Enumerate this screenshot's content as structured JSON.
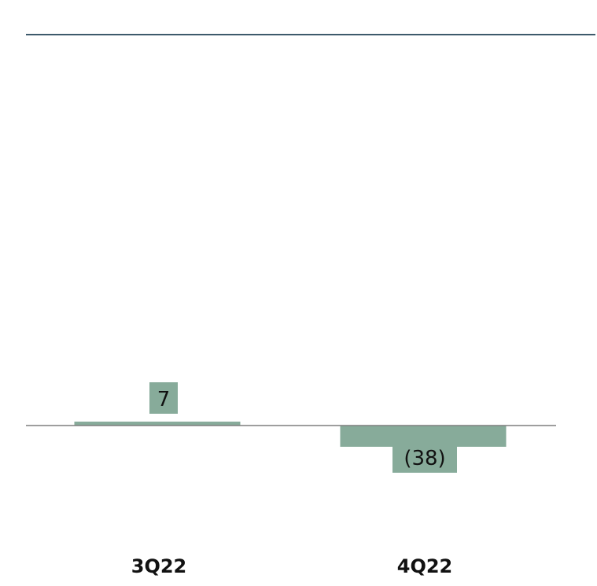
{
  "colors": {
    "bar": "#87ab9a",
    "axis": "#7f7f7f",
    "header_rule": "#3d5a6b",
    "title": "#2f4d5d"
  },
  "chart_data": {
    "type": "bar",
    "categories": [
      "3Q22",
      "4Q22"
    ],
    "values": [
      7,
      -38
    ],
    "data_labels": [
      "7",
      "(38)"
    ],
    "legend": "none",
    "grid": false
  }
}
